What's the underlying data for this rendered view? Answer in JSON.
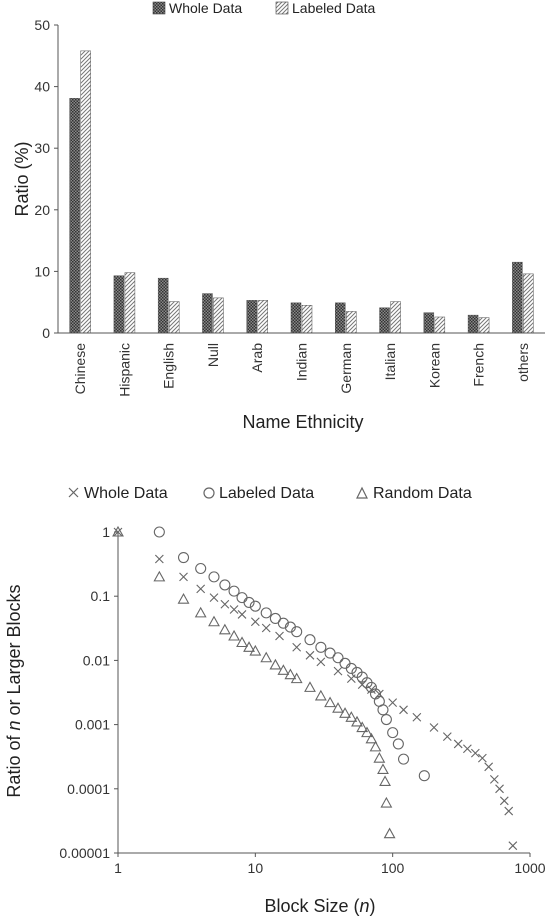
{
  "chart_data": [
    {
      "type": "bar",
      "xlabel": "Name Ethnicity",
      "ylabel": "Ratio (%)",
      "ylim": [
        0,
        50
      ],
      "yticks": [
        "0",
        "10",
        "20",
        "30",
        "40",
        "50"
      ],
      "categories": [
        "Chinese",
        "Hispanic",
        "English",
        "Null",
        "Arab",
        "Indian",
        "German",
        "Italian",
        "Korean",
        "French",
        "others"
      ],
      "series": [
        {
          "name": "Whole Data",
          "values": [
            38.1,
            9.3,
            8.9,
            6.4,
            5.3,
            4.9,
            4.9,
            4.1,
            3.3,
            2.9,
            11.5
          ]
        },
        {
          "name": "Labeled Data",
          "values": [
            45.8,
            9.8,
            5.1,
            5.7,
            5.3,
            4.5,
            3.5,
            5.1,
            2.6,
            2.5,
            9.6
          ]
        }
      ],
      "legend_position": "top"
    },
    {
      "type": "scatter",
      "xlabel": "Block Size (n)",
      "ylabel": "Ratio of n or Larger Blocks",
      "xscale": "log",
      "yscale": "log",
      "xlim": [
        1,
        1000
      ],
      "ylim": [
        1e-05,
        1
      ],
      "xticks": [
        "1",
        "10",
        "100",
        "1000"
      ],
      "yticks": [
        "1",
        "0.1",
        "0.01",
        "0.001",
        "0.0001",
        "0.00001"
      ],
      "legend_position": "top",
      "series": [
        {
          "name": "Whole Data",
          "marker": "x",
          "x": [
            1,
            2,
            3,
            4,
            5,
            6,
            7,
            8,
            10,
            12,
            15,
            20,
            25,
            30,
            40,
            50,
            60,
            70,
            80,
            100,
            120,
            150,
            200,
            250,
            300,
            350,
            400,
            450,
            500,
            550,
            600,
            650,
            700,
            750
          ],
          "y": [
            1,
            0.38,
            0.2,
            0.13,
            0.095,
            0.075,
            0.062,
            0.052,
            0.04,
            0.032,
            0.024,
            0.016,
            0.012,
            0.0095,
            0.0068,
            0.0052,
            0.0042,
            0.0035,
            0.003,
            0.0022,
            0.0017,
            0.0013,
            0.0009,
            0.00065,
            0.0005,
            0.00042,
            0.00036,
            0.0003,
            0.00022,
            0.00014,
            0.0001,
            6.5e-05,
            4.5e-05,
            1.3e-05
          ]
        },
        {
          "name": "Labeled Data",
          "marker": "o",
          "x": [
            2,
            3,
            4,
            5,
            6,
            7,
            8,
            9,
            10,
            12,
            14,
            16,
            18,
            20,
            25,
            30,
            35,
            40,
            45,
            50,
            55,
            60,
            65,
            70,
            75,
            80,
            85,
            90,
            100,
            110,
            120,
            170
          ],
          "y": [
            1,
            0.4,
            0.27,
            0.2,
            0.15,
            0.12,
            0.095,
            0.08,
            0.07,
            0.055,
            0.045,
            0.038,
            0.033,
            0.028,
            0.021,
            0.016,
            0.013,
            0.011,
            0.009,
            0.0075,
            0.0065,
            0.0055,
            0.0045,
            0.0038,
            0.003,
            0.0023,
            0.0017,
            0.0012,
            0.00075,
            0.0005,
            0.00029,
            0.00016
          ]
        },
        {
          "name": "Random Data",
          "marker": "triangle",
          "x": [
            1,
            2,
            3,
            4,
            5,
            6,
            7,
            8,
            9,
            10,
            12,
            14,
            16,
            18,
            20,
            25,
            30,
            35,
            40,
            45,
            50,
            55,
            60,
            65,
            70,
            75,
            80,
            85,
            88,
            90,
            95
          ],
          "y": [
            1,
            0.2,
            0.09,
            0.055,
            0.04,
            0.03,
            0.024,
            0.019,
            0.016,
            0.014,
            0.011,
            0.0085,
            0.007,
            0.006,
            0.0052,
            0.0038,
            0.0028,
            0.0022,
            0.0018,
            0.0015,
            0.0013,
            0.0011,
            0.0009,
            0.00075,
            0.0006,
            0.00045,
            0.0003,
            0.0002,
            0.00013,
            6e-05,
            2e-05
          ]
        }
      ]
    }
  ]
}
